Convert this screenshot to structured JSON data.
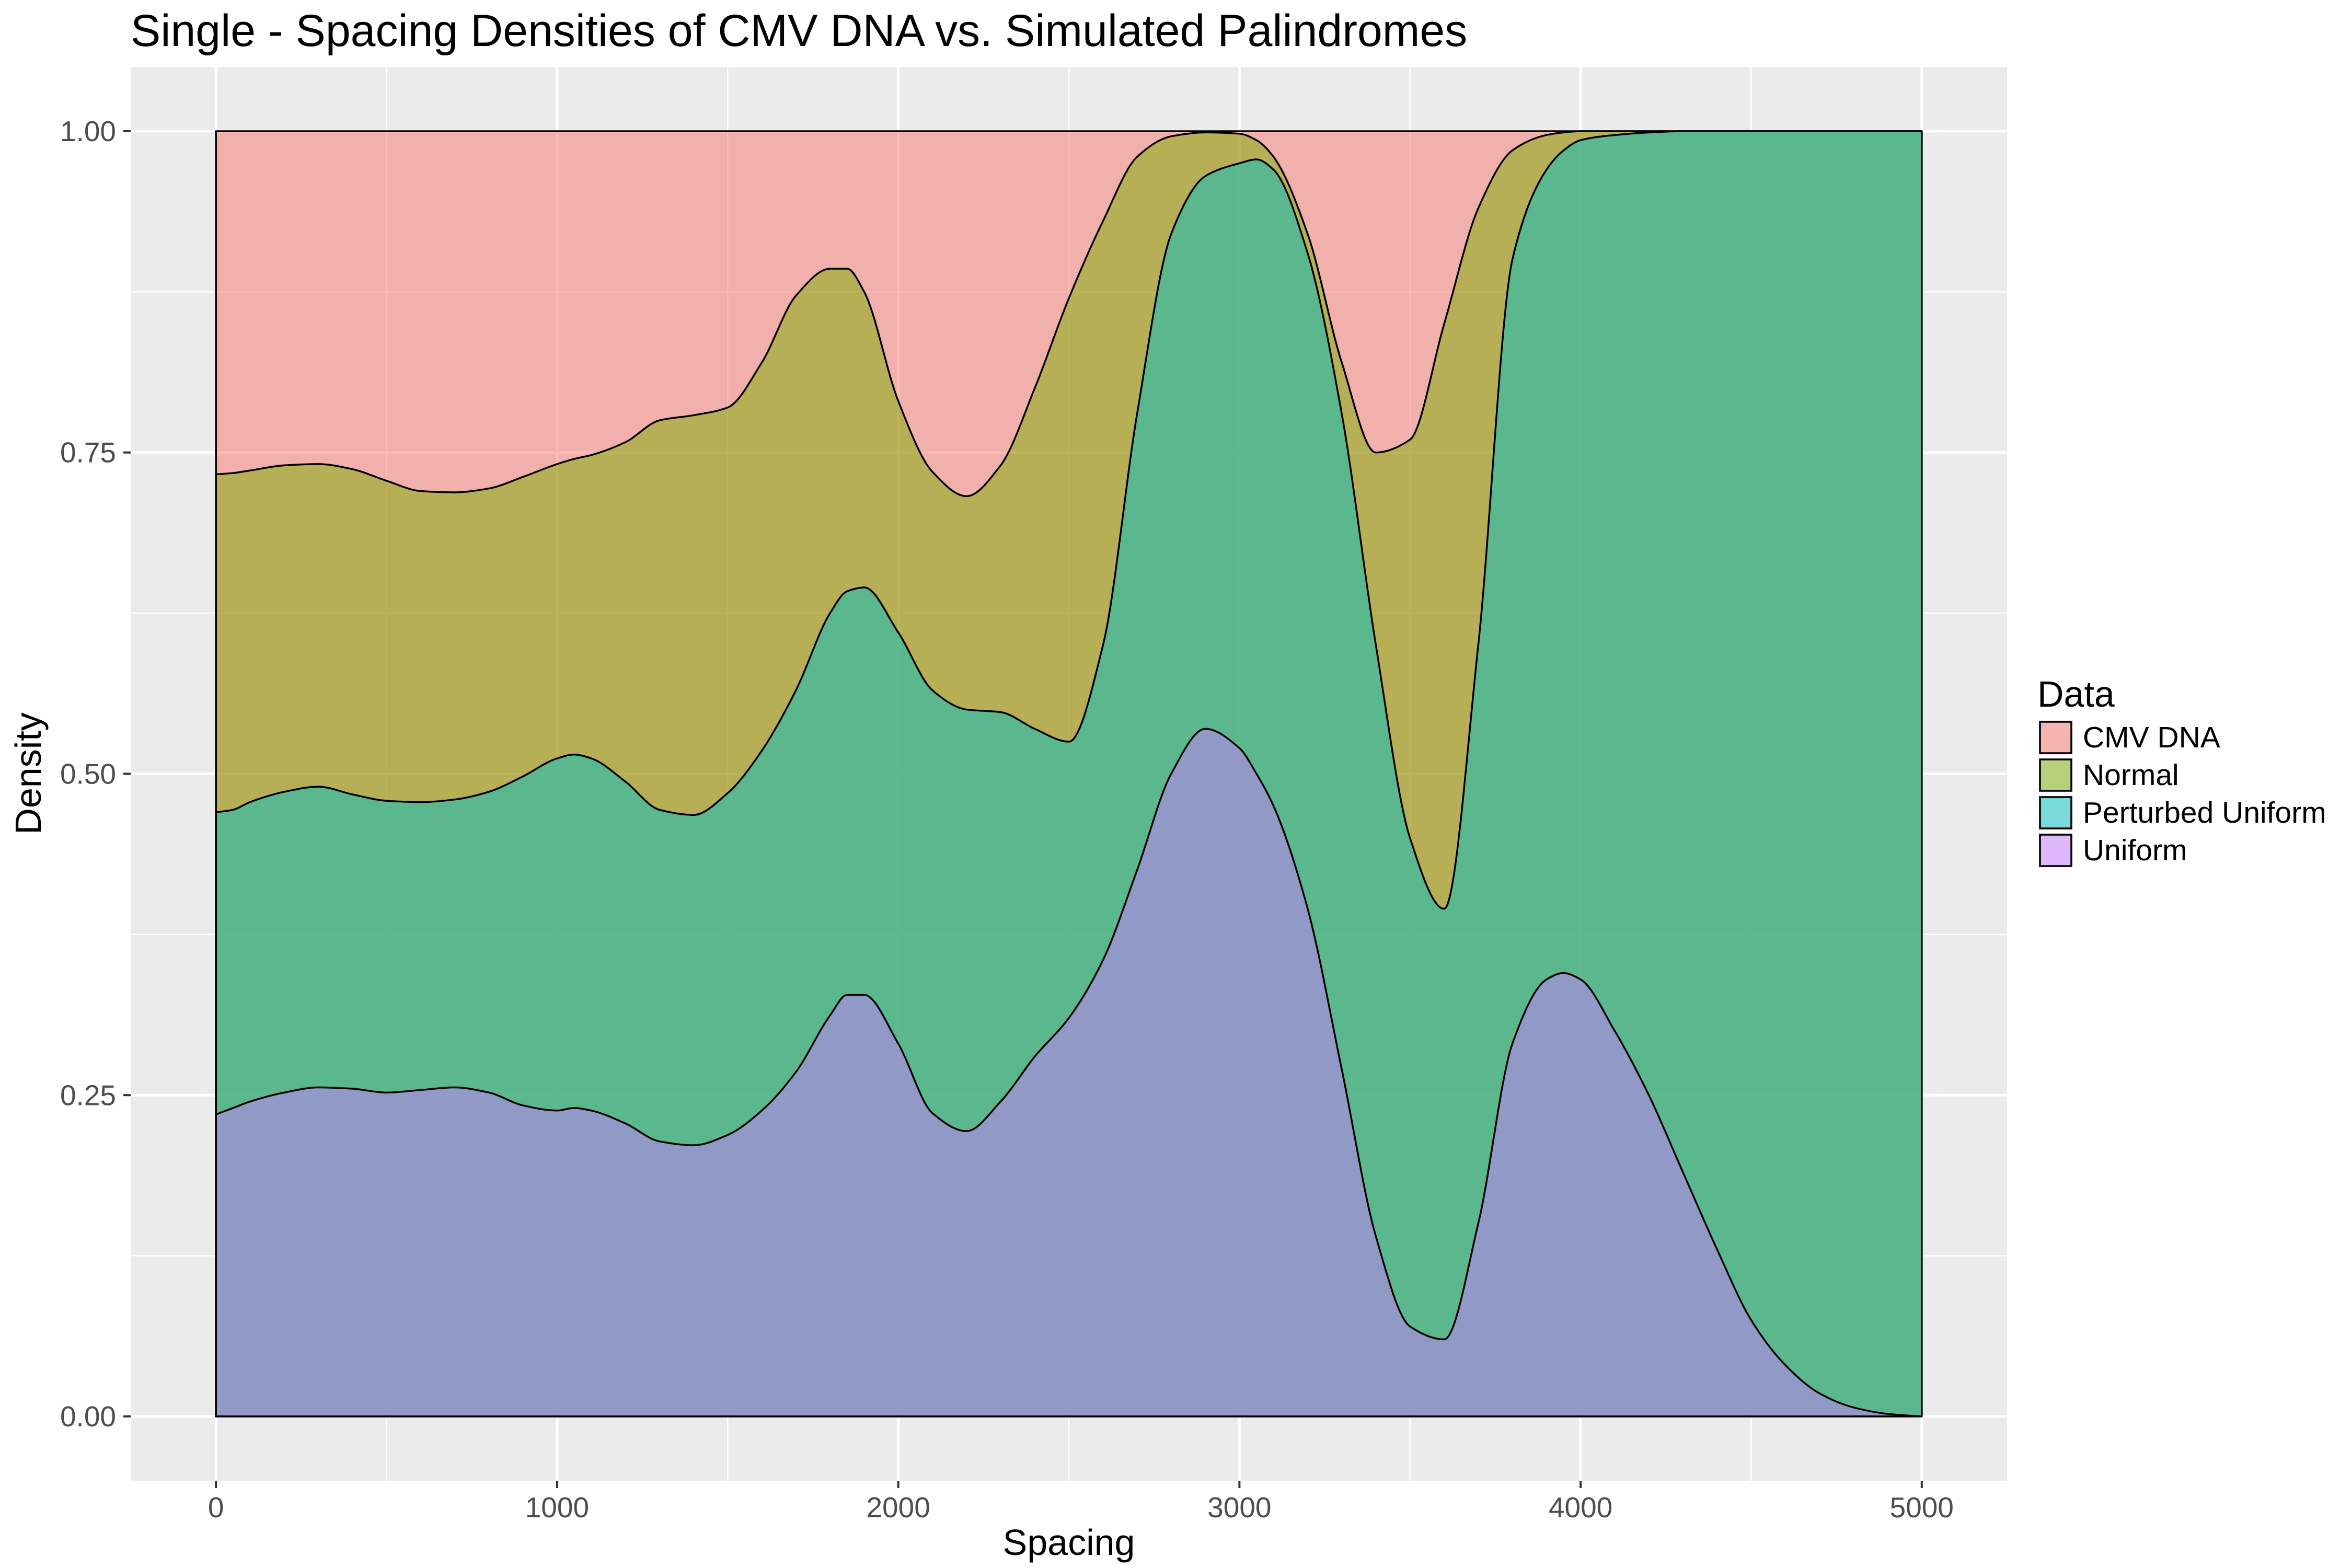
{
  "chart_data": {
    "type": "area",
    "subtype": "stacked conditional density (fill)",
    "title": "Single - Spacing Densities of CMV DNA vs. Simulated Palindromes",
    "xlabel": "Spacing",
    "ylabel": "Density",
    "xlim": [
      -250,
      5250
    ],
    "ylim": [
      -0.05,
      1.05
    ],
    "x_ticks": [
      0,
      1000,
      2000,
      3000,
      4000,
      5000
    ],
    "x_tick_labels": [
      "0",
      "1000",
      "2000",
      "3000",
      "4000",
      "5000"
    ],
    "y_ticks": [
      0,
      0.25,
      0.5,
      0.75,
      1
    ],
    "y_tick_labels": [
      "0.00",
      "0.25",
      "0.50",
      "0.75",
      "1.00"
    ],
    "grid": true,
    "legend": {
      "title": "Data",
      "position": "right",
      "entries": [
        "CMV DNA",
        "Normal",
        "Perturbed Uniform",
        "Uniform"
      ]
    },
    "x": [
      0,
      50,
      100,
      200,
      300,
      400,
      500,
      600,
      700,
      800,
      900,
      1000,
      1050,
      1100,
      1200,
      1300,
      1400,
      1500,
      1600,
      1700,
      1800,
      1850,
      1900,
      2000,
      2100,
      2200,
      2300,
      2400,
      2500,
      2600,
      2700,
      2800,
      2900,
      3000,
      3050,
      3100,
      3200,
      3300,
      3400,
      3500,
      3600,
      3700,
      3800,
      3900,
      3950,
      4000,
      4100,
      4200,
      4300,
      4400,
      4500,
      4600,
      4700,
      4800,
      4900,
      5000
    ],
    "series": [
      {
        "name": "Uniform",
        "color": "#C77CFF",
        "upper": [
          0.235,
          0.24,
          0.245,
          0.252,
          0.256,
          0.255,
          0.252,
          0.254,
          0.256,
          0.252,
          0.242,
          0.238,
          0.24,
          0.238,
          0.228,
          0.214,
          0.211,
          0.219,
          0.238,
          0.268,
          0.312,
          0.328,
          0.328,
          0.29,
          0.236,
          0.222,
          0.245,
          0.28,
          0.31,
          0.355,
          0.425,
          0.5,
          0.535,
          0.52,
          0.5,
          0.475,
          0.395,
          0.27,
          0.14,
          0.07,
          0.06,
          0.15,
          0.29,
          0.34,
          0.345,
          0.34,
          0.3,
          0.25,
          0.19,
          0.13,
          0.075,
          0.04,
          0.018,
          0.007,
          0.002,
          0.0
        ]
      },
      {
        "name": "Perturbed Uniform",
        "color": "#00BFC4",
        "upper": [
          0.47,
          0.472,
          0.478,
          0.486,
          0.49,
          0.484,
          0.479,
          0.478,
          0.48,
          0.486,
          0.498,
          0.512,
          0.515,
          0.512,
          0.494,
          0.472,
          0.468,
          0.485,
          0.518,
          0.565,
          0.625,
          0.642,
          0.645,
          0.61,
          0.565,
          0.55,
          0.548,
          0.535,
          0.525,
          0.6,
          0.78,
          0.92,
          0.965,
          0.975,
          0.978,
          0.97,
          0.905,
          0.78,
          0.6,
          0.45,
          0.395,
          0.6,
          0.9,
          0.97,
          0.985,
          0.993,
          0.997,
          0.999,
          1.0,
          1.0,
          1.0,
          1.0,
          1.0,
          1.0,
          1.0,
          1.0
        ]
      },
      {
        "name": "Normal",
        "color": "#7CAE00",
        "upper": [
          0.733,
          0.734,
          0.736,
          0.74,
          0.741,
          0.737,
          0.728,
          0.72,
          0.719,
          0.722,
          0.731,
          0.741,
          0.745,
          0.748,
          0.758,
          0.775,
          0.779,
          0.785,
          0.82,
          0.872,
          0.893,
          0.893,
          0.875,
          0.79,
          0.735,
          0.716,
          0.74,
          0.8,
          0.87,
          0.93,
          0.98,
          0.996,
          0.999,
          0.998,
          0.993,
          0.98,
          0.92,
          0.82,
          0.75,
          0.76,
          0.85,
          0.94,
          0.985,
          0.997,
          0.999,
          1.0,
          1.0,
          1.0,
          1.0,
          1.0,
          1.0,
          1.0,
          1.0,
          1.0,
          1.0,
          1.0
        ]
      },
      {
        "name": "CMV DNA",
        "color": "#F8766D",
        "upper": [
          1,
          1,
          1,
          1,
          1,
          1,
          1,
          1,
          1,
          1,
          1,
          1,
          1,
          1,
          1,
          1,
          1,
          1,
          1,
          1,
          1,
          1,
          1,
          1,
          1,
          1,
          1,
          1,
          1,
          1,
          1,
          1,
          1,
          1,
          1,
          1,
          1,
          1,
          1,
          1,
          1,
          1,
          1,
          1,
          1,
          1,
          1,
          1,
          1,
          1,
          1,
          1,
          1,
          1,
          1,
          1
        ]
      }
    ]
  }
}
